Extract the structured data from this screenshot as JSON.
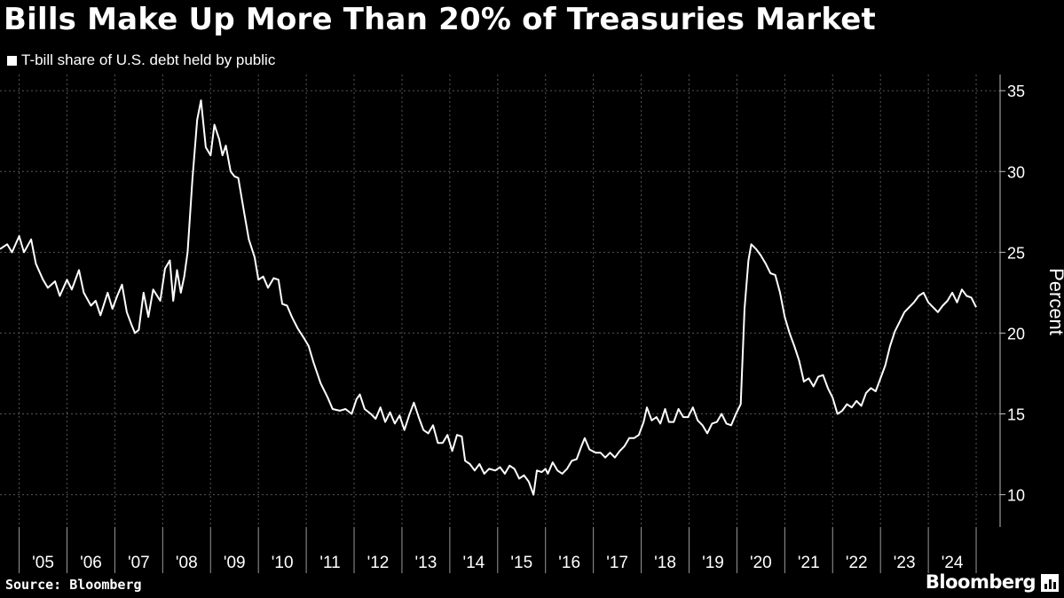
{
  "header": {
    "title": "Bills Make Up More Than 20% of Treasuries Market",
    "legend_label": "T-bill share of U.S. debt held by public"
  },
  "footer": {
    "source": "Source: Bloomberg",
    "brand": "Bloomberg"
  },
  "colors": {
    "background": "#000000",
    "line": "#ffffff",
    "grid": "#555555"
  },
  "chart_data": {
    "type": "line",
    "title": "Bills Make Up More Than 20% of Treasuries Market",
    "xlabel": "",
    "ylabel": "Percent",
    "ylim": [
      8,
      36
    ],
    "xlim": [
      2004.6,
      2025.5
    ],
    "y_ticks": [
      10,
      15,
      20,
      25,
      30,
      35
    ],
    "x_tick_labels": [
      "'05",
      "'06",
      "'07",
      "'08",
      "'09",
      "'10",
      "'11",
      "'12",
      "'13",
      "'14",
      "'15",
      "'16",
      "'17",
      "'18",
      "'19",
      "'20",
      "'21",
      "'22",
      "'23",
      "'24"
    ],
    "x_ticks": [
      2005,
      2006,
      2007,
      2008,
      2009,
      2010,
      2011,
      2012,
      2013,
      2014,
      2015,
      2016,
      2017,
      2018,
      2019,
      2020,
      2021,
      2022,
      2023,
      2024
    ],
    "y_axis_position": "right",
    "grid": true,
    "series": [
      {
        "name": "T-bill share of U.S. debt held by public",
        "points": [
          [
            2004.6,
            25.2
          ],
          [
            2004.75,
            25.5
          ],
          [
            2004.85,
            25.0
          ],
          [
            2005.0,
            26.0
          ],
          [
            2005.1,
            25.0
          ],
          [
            2005.25,
            25.8
          ],
          [
            2005.35,
            24.3
          ],
          [
            2005.5,
            23.3
          ],
          [
            2005.6,
            22.8
          ],
          [
            2005.75,
            23.2
          ],
          [
            2005.85,
            22.3
          ],
          [
            2006.0,
            23.3
          ],
          [
            2006.1,
            22.7
          ],
          [
            2006.25,
            23.9
          ],
          [
            2006.35,
            22.5
          ],
          [
            2006.5,
            21.7
          ],
          [
            2006.6,
            22.0
          ],
          [
            2006.7,
            21.1
          ],
          [
            2006.85,
            22.5
          ],
          [
            2006.95,
            21.5
          ],
          [
            2007.05,
            22.3
          ],
          [
            2007.15,
            23.0
          ],
          [
            2007.25,
            21.3
          ],
          [
            2007.35,
            20.5
          ],
          [
            2007.42,
            20.0
          ],
          [
            2007.5,
            20.2
          ],
          [
            2007.6,
            22.5
          ],
          [
            2007.7,
            21.0
          ],
          [
            2007.8,
            22.7
          ],
          [
            2007.95,
            22.0
          ],
          [
            2008.05,
            24.0
          ],
          [
            2008.15,
            24.5
          ],
          [
            2008.22,
            22.0
          ],
          [
            2008.3,
            23.9
          ],
          [
            2008.38,
            22.5
          ],
          [
            2008.45,
            23.5
          ],
          [
            2008.52,
            25.0
          ],
          [
            2008.62,
            29.5
          ],
          [
            2008.72,
            33.2
          ],
          [
            2008.8,
            34.4
          ],
          [
            2008.9,
            31.5
          ],
          [
            2009.0,
            31.0
          ],
          [
            2009.08,
            32.9
          ],
          [
            2009.18,
            32.0
          ],
          [
            2009.25,
            31.0
          ],
          [
            2009.32,
            31.6
          ],
          [
            2009.42,
            30.0
          ],
          [
            2009.5,
            29.7
          ],
          [
            2009.58,
            29.6
          ],
          [
            2009.7,
            27.5
          ],
          [
            2009.8,
            25.8
          ],
          [
            2009.92,
            24.7
          ],
          [
            2010.0,
            23.3
          ],
          [
            2010.1,
            23.5
          ],
          [
            2010.2,
            22.8
          ],
          [
            2010.32,
            23.4
          ],
          [
            2010.42,
            23.3
          ],
          [
            2010.5,
            21.8
          ],
          [
            2010.6,
            21.7
          ],
          [
            2010.7,
            21.0
          ],
          [
            2010.82,
            20.3
          ],
          [
            2010.95,
            19.7
          ],
          [
            2011.05,
            19.2
          ],
          [
            2011.15,
            18.2
          ],
          [
            2011.3,
            16.9
          ],
          [
            2011.45,
            16.0
          ],
          [
            2011.55,
            15.3
          ],
          [
            2011.7,
            15.2
          ],
          [
            2011.82,
            15.3
          ],
          [
            2011.95,
            15.0
          ],
          [
            2012.05,
            15.9
          ],
          [
            2012.12,
            16.2
          ],
          [
            2012.22,
            15.3
          ],
          [
            2012.35,
            15.0
          ],
          [
            2012.45,
            14.7
          ],
          [
            2012.55,
            15.4
          ],
          [
            2012.65,
            14.5
          ],
          [
            2012.75,
            15.1
          ],
          [
            2012.85,
            14.4
          ],
          [
            2012.95,
            14.9
          ],
          [
            2013.05,
            14.0
          ],
          [
            2013.15,
            14.9
          ],
          [
            2013.25,
            15.7
          ],
          [
            2013.35,
            14.8
          ],
          [
            2013.45,
            14.0
          ],
          [
            2013.55,
            13.8
          ],
          [
            2013.65,
            14.3
          ],
          [
            2013.75,
            13.2
          ],
          [
            2013.85,
            13.2
          ],
          [
            2013.95,
            13.7
          ],
          [
            2014.05,
            12.7
          ],
          [
            2014.15,
            13.7
          ],
          [
            2014.25,
            13.6
          ],
          [
            2014.32,
            12.1
          ],
          [
            2014.42,
            11.9
          ],
          [
            2014.52,
            11.5
          ],
          [
            2014.62,
            11.9
          ],
          [
            2014.72,
            11.3
          ],
          [
            2014.82,
            11.6
          ],
          [
            2014.95,
            11.5
          ],
          [
            2015.05,
            11.7
          ],
          [
            2015.15,
            11.3
          ],
          [
            2015.25,
            11.8
          ],
          [
            2015.35,
            11.6
          ],
          [
            2015.45,
            11.0
          ],
          [
            2015.55,
            11.2
          ],
          [
            2015.65,
            10.8
          ],
          [
            2015.75,
            10.0
          ],
          [
            2015.82,
            11.5
          ],
          [
            2015.92,
            11.4
          ],
          [
            2016.0,
            11.6
          ],
          [
            2016.05,
            11.3
          ],
          [
            2016.15,
            12.0
          ],
          [
            2016.25,
            11.5
          ],
          [
            2016.35,
            11.3
          ],
          [
            2016.45,
            11.6
          ],
          [
            2016.55,
            12.1
          ],
          [
            2016.65,
            12.2
          ],
          [
            2016.75,
            13.0
          ],
          [
            2016.82,
            13.5
          ],
          [
            2016.92,
            12.8
          ],
          [
            2017.05,
            12.6
          ],
          [
            2017.15,
            12.6
          ],
          [
            2017.25,
            12.3
          ],
          [
            2017.35,
            12.6
          ],
          [
            2017.45,
            12.3
          ],
          [
            2017.55,
            12.7
          ],
          [
            2017.65,
            13.0
          ],
          [
            2017.75,
            13.5
          ],
          [
            2017.85,
            13.5
          ],
          [
            2017.95,
            13.7
          ],
          [
            2018.05,
            14.5
          ],
          [
            2018.12,
            15.4
          ],
          [
            2018.22,
            14.6
          ],
          [
            2018.32,
            14.8
          ],
          [
            2018.4,
            14.4
          ],
          [
            2018.5,
            15.3
          ],
          [
            2018.58,
            14.5
          ],
          [
            2018.68,
            14.5
          ],
          [
            2018.78,
            15.3
          ],
          [
            2018.88,
            14.8
          ],
          [
            2018.98,
            14.8
          ],
          [
            2019.08,
            15.4
          ],
          [
            2019.18,
            14.6
          ],
          [
            2019.28,
            14.3
          ],
          [
            2019.38,
            13.8
          ],
          [
            2019.48,
            14.4
          ],
          [
            2019.58,
            14.5
          ],
          [
            2019.68,
            15.0
          ],
          [
            2019.78,
            14.4
          ],
          [
            2019.88,
            14.3
          ],
          [
            2019.98,
            15.0
          ],
          [
            2020.08,
            15.6
          ],
          [
            2020.16,
            21.5
          ],
          [
            2020.24,
            24.5
          ],
          [
            2020.3,
            25.5
          ],
          [
            2020.4,
            25.2
          ],
          [
            2020.5,
            24.8
          ],
          [
            2020.6,
            24.3
          ],
          [
            2020.7,
            23.7
          ],
          [
            2020.8,
            23.6
          ],
          [
            2020.9,
            22.5
          ],
          [
            2021.0,
            21.0
          ],
          [
            2021.1,
            20.0
          ],
          [
            2021.2,
            19.2
          ],
          [
            2021.3,
            18.3
          ],
          [
            2021.4,
            17.0
          ],
          [
            2021.5,
            17.2
          ],
          [
            2021.6,
            16.7
          ],
          [
            2021.7,
            17.3
          ],
          [
            2021.8,
            17.4
          ],
          [
            2021.9,
            16.6
          ],
          [
            2022.0,
            16.0
          ],
          [
            2022.1,
            15.0
          ],
          [
            2022.2,
            15.2
          ],
          [
            2022.3,
            15.6
          ],
          [
            2022.4,
            15.4
          ],
          [
            2022.5,
            15.8
          ],
          [
            2022.6,
            15.5
          ],
          [
            2022.7,
            16.3
          ],
          [
            2022.8,
            16.6
          ],
          [
            2022.9,
            16.4
          ],
          [
            2023.0,
            17.2
          ],
          [
            2023.1,
            18.0
          ],
          [
            2023.2,
            19.2
          ],
          [
            2023.3,
            20.1
          ],
          [
            2023.4,
            20.7
          ],
          [
            2023.5,
            21.3
          ],
          [
            2023.6,
            21.6
          ],
          [
            2023.7,
            21.9
          ],
          [
            2023.8,
            22.3
          ],
          [
            2023.9,
            22.5
          ],
          [
            2024.0,
            21.9
          ],
          [
            2024.1,
            21.6
          ],
          [
            2024.2,
            21.3
          ],
          [
            2024.3,
            21.7
          ],
          [
            2024.4,
            22.0
          ],
          [
            2024.5,
            22.5
          ],
          [
            2024.6,
            21.9
          ],
          [
            2024.7,
            22.7
          ],
          [
            2024.8,
            22.3
          ],
          [
            2024.9,
            22.2
          ],
          [
            2025.0,
            21.6
          ]
        ]
      }
    ]
  }
}
